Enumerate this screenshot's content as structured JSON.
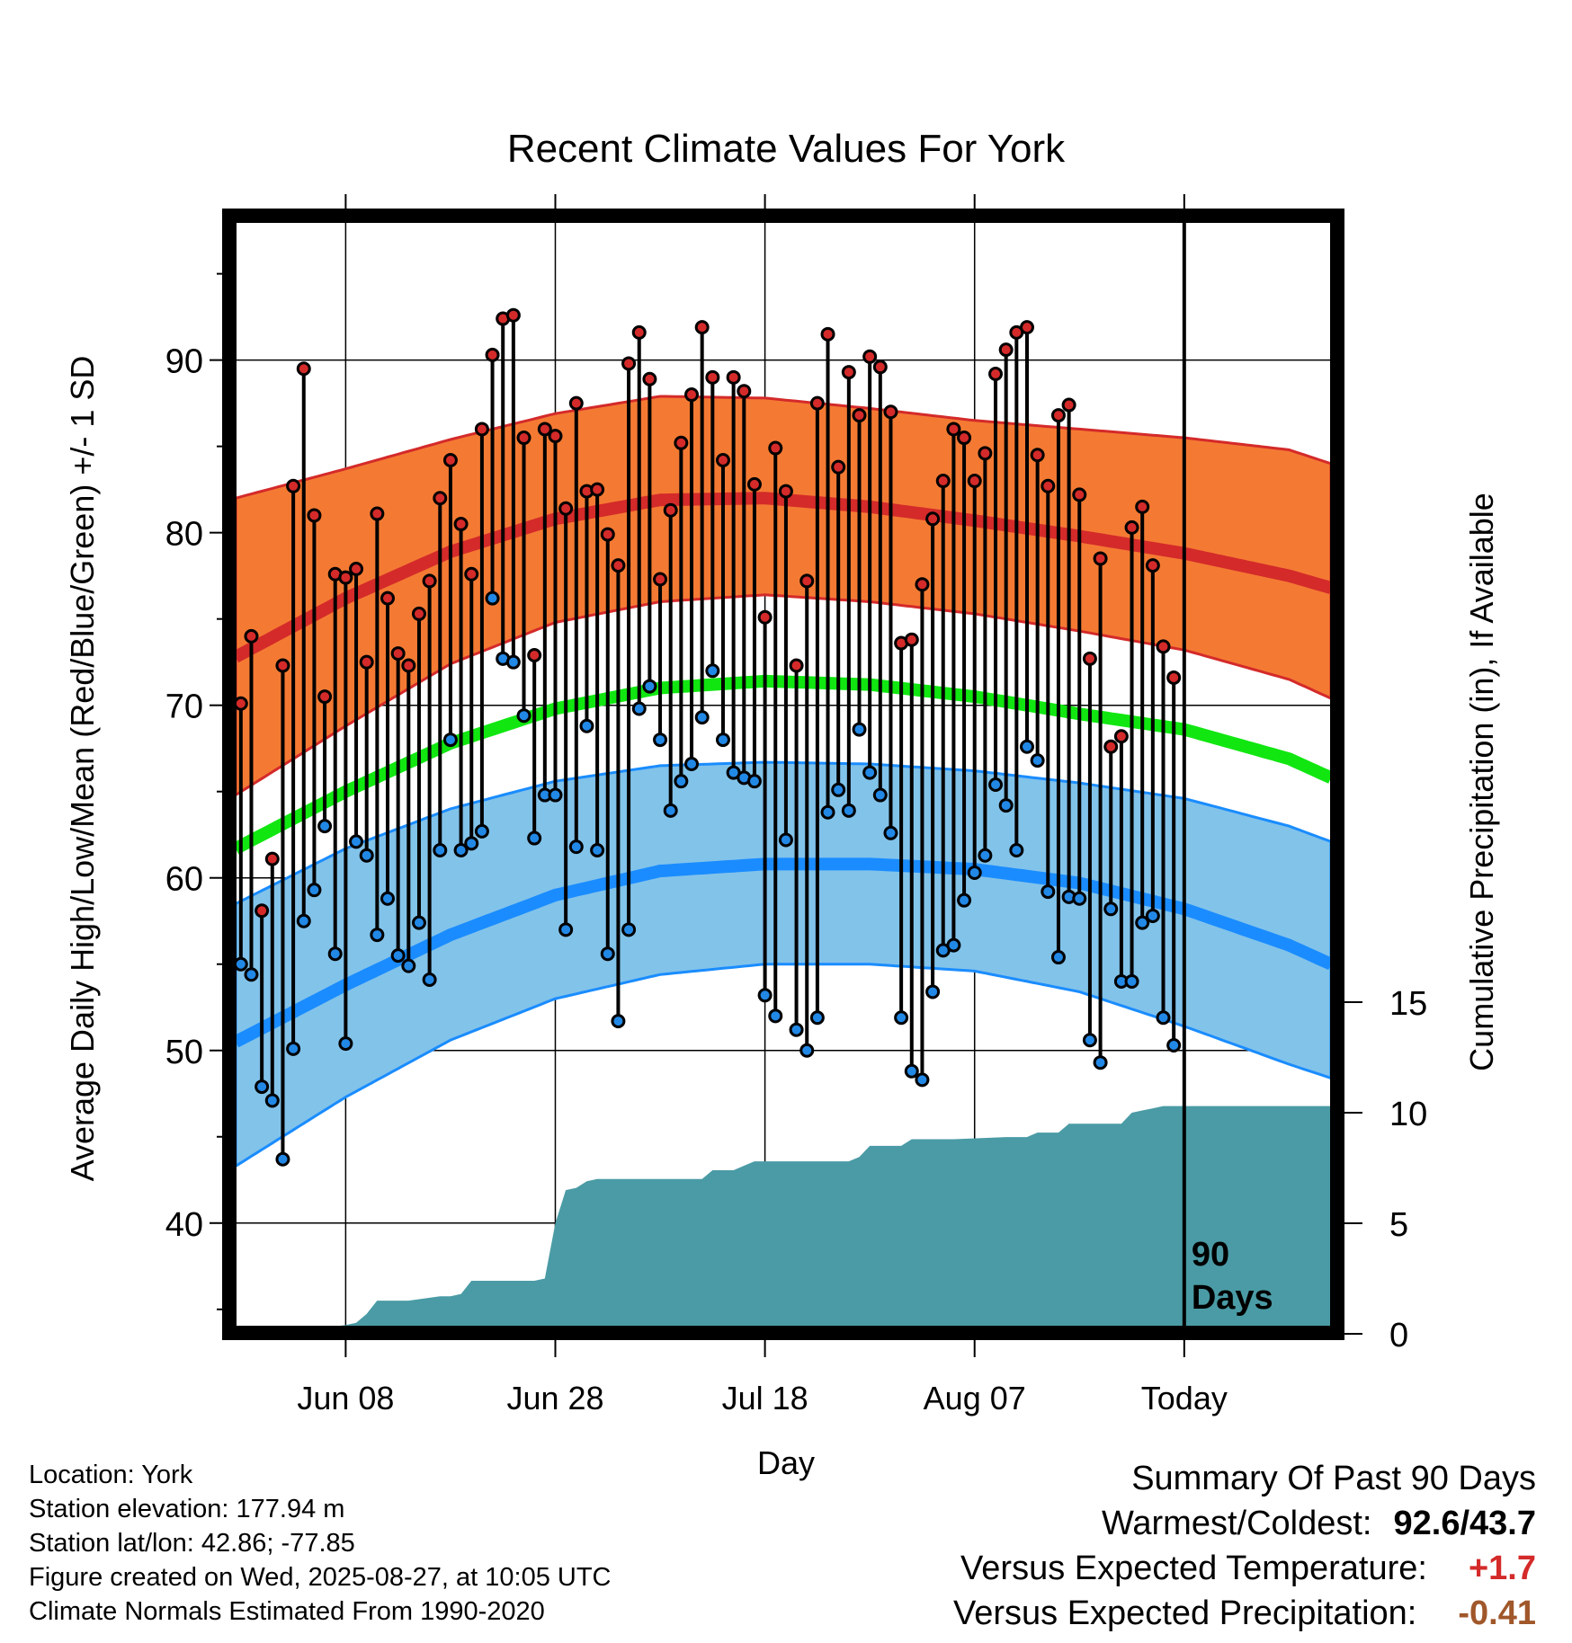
{
  "chart_data": {
    "type": "line",
    "title": "Recent Climate Values For York",
    "xlabel": "Day",
    "ylabel": "Average Daily High/Low/Mean (Red/Blue/Green) +/- 1 SD",
    "y2label": "Cumulative Precipitation (in), If Available",
    "ylim": [
      34,
      98
    ],
    "y2lim": [
      0,
      20
    ],
    "xlim": [
      -0.5,
      104
    ],
    "x_ticks": [
      {
        "x": 10,
        "label": "Jun 08"
      },
      {
        "x": 30,
        "label": "Jun 28"
      },
      {
        "x": 50,
        "label": "Jul 18"
      },
      {
        "x": 70,
        "label": "Aug 07"
      },
      {
        "x": 90,
        "label": "Today"
      }
    ],
    "y_ticks": [
      40,
      50,
      60,
      70,
      80,
      90
    ],
    "y2_ticks": [
      0,
      5,
      10,
      15
    ],
    "today_marker": {
      "x": 90,
      "label_line1": "90",
      "label_line2": "Days"
    },
    "colors": {
      "high_mean": "#d42a2a",
      "high_band": "#f47a33",
      "mean": "#11e611",
      "low_mean": "#1a8cff",
      "low_band": "#82c3ea",
      "precip": "#4a9ba5",
      "high_point": "#d42a2a",
      "low_point": "#2288e6"
    },
    "normals": {
      "x": [
        -0.5,
        10,
        20,
        30,
        40,
        50,
        60,
        70,
        80,
        90,
        100,
        104
      ],
      "high_mean": [
        72.8,
        76.2,
        78.9,
        80.8,
        81.9,
        82.0,
        81.5,
        80.7,
        79.8,
        78.8,
        77.5,
        76.8
      ],
      "high_upper": [
        82.0,
        83.7,
        85.4,
        86.9,
        87.9,
        87.8,
        87.2,
        86.5,
        86.0,
        85.5,
        84.8,
        84.0
      ],
      "high_lower": [
        64.8,
        68.8,
        72.4,
        74.8,
        76.0,
        76.4,
        76.0,
        75.3,
        74.3,
        73.2,
        71.5,
        70.4
      ],
      "mean": [
        61.7,
        65.0,
        67.8,
        69.8,
        71.0,
        71.4,
        71.2,
        70.5,
        69.5,
        68.6,
        66.9,
        65.8
      ],
      "low_mean": [
        50.5,
        53.8,
        56.7,
        59.0,
        60.4,
        60.8,
        60.8,
        60.5,
        59.7,
        58.2,
        56.1,
        55.0
      ],
      "low_upper": [
        58.5,
        61.7,
        64.0,
        65.6,
        66.5,
        66.7,
        66.6,
        66.2,
        65.5,
        64.6,
        63.0,
        62.1
      ],
      "low_lower": [
        43.3,
        47.3,
        50.6,
        53.0,
        54.4,
        55.0,
        55.0,
        54.6,
        53.4,
        51.4,
        49.2,
        48.4
      ]
    },
    "days": {
      "high": [
        70.1,
        74.0,
        58.1,
        61.1,
        72.3,
        82.7,
        89.5,
        81.0,
        70.5,
        77.6,
        77.4,
        77.9,
        72.5,
        81.1,
        76.2,
        73.0,
        72.3,
        75.3,
        77.2,
        82.0,
        84.2,
        80.5,
        77.6,
        86.0,
        90.3,
        92.4,
        92.6,
        85.5,
        72.9,
        86.0,
        85.6,
        81.4,
        87.5,
        82.4,
        82.5,
        79.9,
        78.1,
        89.8,
        91.6,
        88.9,
        77.3,
        81.3,
        85.2,
        88.0,
        91.9,
        89.0,
        84.2,
        89.0,
        88.2,
        82.8,
        75.1,
        84.9,
        82.4,
        72.3,
        77.2,
        87.5,
        91.5,
        83.8,
        89.3,
        86.8,
        90.2,
        89.6,
        87.0,
        73.6,
        73.8,
        77.0,
        80.8,
        83.0,
        86.0,
        85.5,
        83.0,
        84.6,
        89.2,
        90.6,
        91.6,
        91.9,
        84.5,
        82.7,
        86.8,
        87.4,
        82.2,
        72.7,
        78.5,
        67.6,
        68.2,
        80.3,
        81.5,
        78.1,
        73.4,
        71.6
      ],
      "low": [
        55.0,
        54.4,
        47.9,
        47.1,
        43.7,
        50.1,
        57.5,
        59.3,
        63.0,
        55.6,
        50.4,
        62.1,
        61.3,
        56.7,
        58.8,
        55.5,
        54.9,
        57.4,
        54.1,
        61.6,
        68.0,
        61.6,
        62.0,
        62.7,
        76.2,
        72.7,
        72.5,
        69.4,
        62.3,
        64.8,
        64.8,
        57.0,
        61.8,
        68.8,
        61.6,
        55.6,
        51.7,
        57.0,
        69.8,
        71.1,
        68.0,
        63.9,
        65.6,
        66.6,
        69.3,
        72.0,
        68.0,
        66.1,
        65.8,
        65.6,
        53.2,
        52.0,
        62.2,
        51.2,
        50.0,
        51.9,
        63.8,
        65.1,
        63.9,
        68.6,
        66.1,
        64.8,
        62.6,
        51.9,
        48.8,
        48.3,
        53.4,
        55.8,
        56.1,
        58.7,
        60.3,
        61.3,
        65.4,
        64.2,
        61.6,
        67.6,
        66.8,
        59.2,
        55.4,
        58.9,
        58.8,
        50.6,
        49.3,
        58.2,
        54.0,
        54.0,
        57.4,
        57.8,
        51.9,
        50.3
      ]
    },
    "precip": {
      "x": [
        -0.5,
        8,
        8.5,
        10,
        11,
        12,
        13,
        16,
        19,
        20,
        21,
        22,
        28,
        29,
        30,
        31,
        32,
        33,
        34,
        44,
        45,
        47,
        48,
        49,
        50,
        58,
        59,
        60,
        63,
        64,
        68,
        73,
        75,
        76,
        78,
        79,
        84,
        85,
        86,
        87,
        88,
        89,
        90,
        104
      ],
      "y": [
        0,
        0,
        0.3,
        0.4,
        0.5,
        0.9,
        1.5,
        1.5,
        1.7,
        1.7,
        1.8,
        2.4,
        2.4,
        2.5,
        5.0,
        6.5,
        6.6,
        6.9,
        7.0,
        7.0,
        7.4,
        7.4,
        7.6,
        7.8,
        7.8,
        7.8,
        8.0,
        8.5,
        8.5,
        8.8,
        8.8,
        8.9,
        8.9,
        9.1,
        9.1,
        9.5,
        9.5,
        10.0,
        10.1,
        10.2,
        10.3,
        10.3,
        10.3,
        10.3
      ]
    }
  },
  "info": {
    "location": "Location: York",
    "elevation": "Station elevation: 177.94 m",
    "latlon": "Station lat/lon: 42.86; -77.85",
    "created": "Figure created on Wed, 2025-08-27, at 10:05 UTC",
    "normals": "Climate Normals Estimated From 1990-2020"
  },
  "summary": {
    "title": "Summary Of Past 90 Days",
    "warm_cold_label": "Warmest/Coldest:",
    "warm_value": "92.6",
    "cold_value": "43.7",
    "temp_label": "Versus Expected Temperature:",
    "temp_value": "+1.7",
    "temp_color": "#d42a2a",
    "precip_label": "Versus Expected Precipitation:",
    "precip_value": "-0.41",
    "precip_color": "#a0572a"
  }
}
